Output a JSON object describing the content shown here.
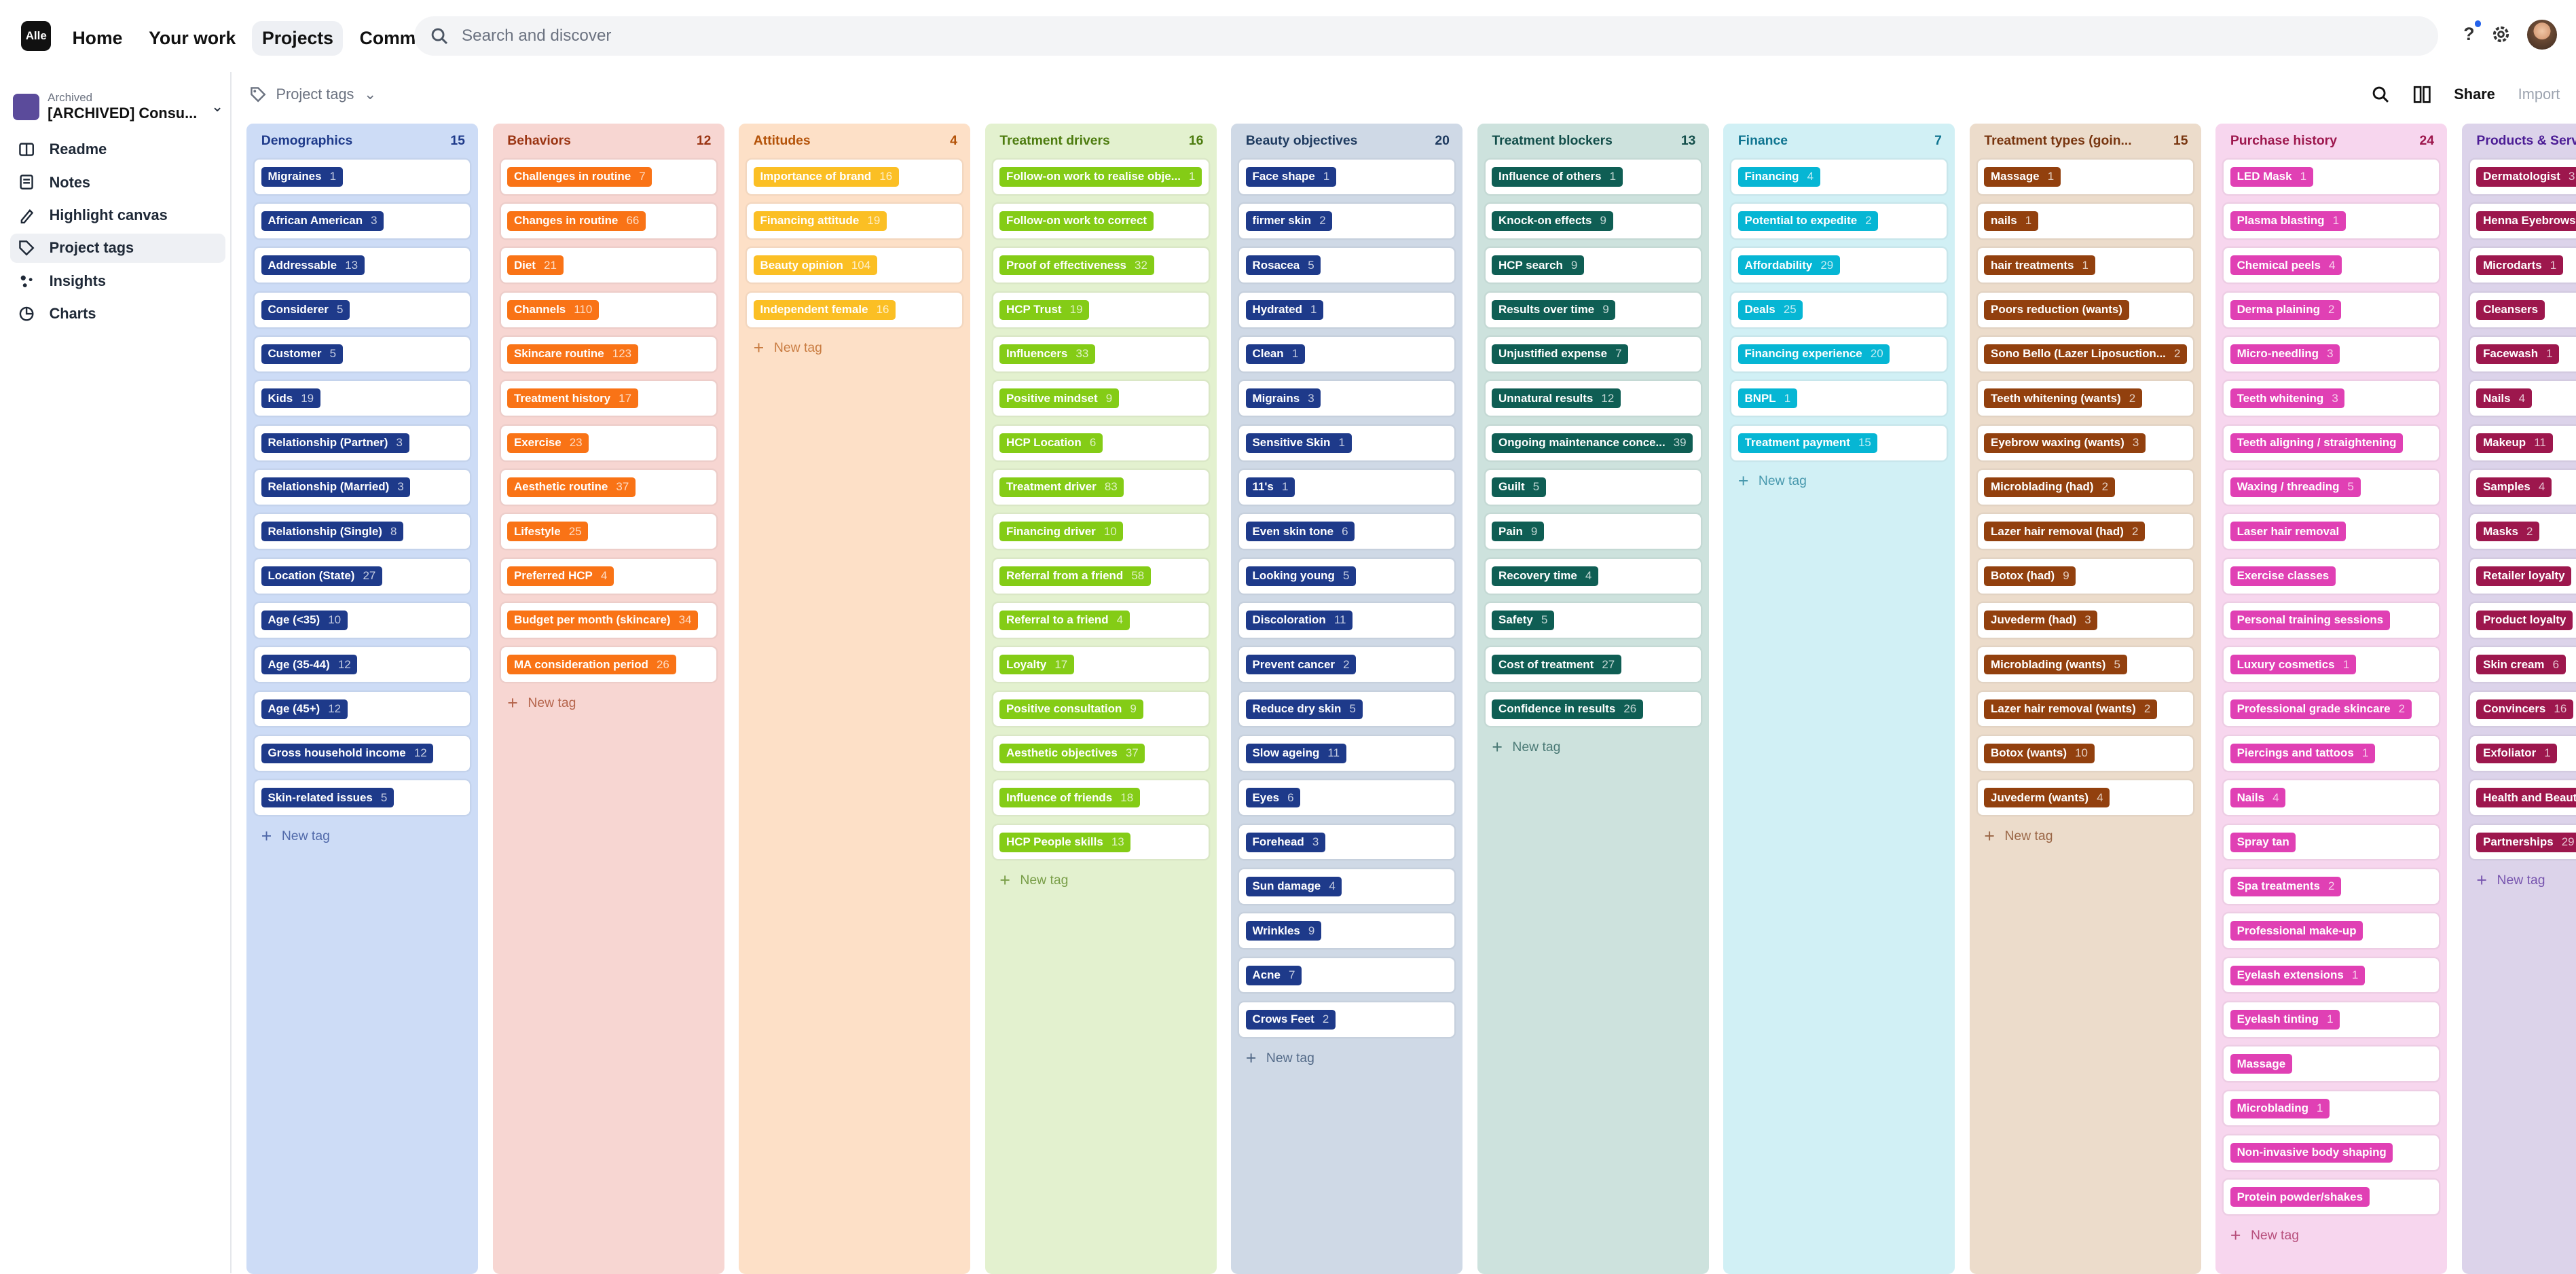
{
  "topbar": {
    "logo": "Alle",
    "nav": [
      "Home",
      "Your work",
      "Projects",
      "Community"
    ],
    "active_nav": "Projects",
    "search_placeholder": "Search and discover"
  },
  "sidebar": {
    "archived_label": "Archived",
    "project_name": "[ARCHIVED] Consu...",
    "items": [
      {
        "label": "Readme",
        "icon": "book-icon"
      },
      {
        "label": "Notes",
        "icon": "notes-icon"
      },
      {
        "label": "Highlight canvas",
        "icon": "highlight-icon"
      },
      {
        "label": "Project tags",
        "icon": "tag-icon",
        "active": true
      },
      {
        "label": "Insights",
        "icon": "insights-icon"
      },
      {
        "label": "Charts",
        "icon": "chart-icon"
      }
    ]
  },
  "toolbar": {
    "project_tags": "Project tags",
    "share": "Share",
    "import": "Import"
  },
  "new_tag_label": "New tag",
  "columns": [
    {
      "name": "Demographics",
      "count": "15",
      "bg": "#cddcf6",
      "head": "#1e3a8a",
      "pill": "#1e3a8a",
      "tags": [
        [
          "Migraines",
          "1"
        ],
        [
          "African American",
          "3"
        ],
        [
          "Addressable",
          "13"
        ],
        [
          "Considerer",
          "5"
        ],
        [
          "Customer",
          "5"
        ],
        [
          "Kids",
          "19"
        ],
        [
          "Relationship (Partner)",
          "3"
        ],
        [
          "Relationship (Married)",
          "3"
        ],
        [
          "Relationship (Single)",
          "8"
        ],
        [
          "Location (State)",
          "27"
        ],
        [
          "Age (<35)",
          "10"
        ],
        [
          "Age (35-44)",
          "12"
        ],
        [
          "Age (45+)",
          "12"
        ],
        [
          "Gross household income",
          "12"
        ],
        [
          "Skin-related issues",
          "5"
        ]
      ]
    },
    {
      "name": "Behaviors",
      "count": "12",
      "bg": "#f7d6d2",
      "head": "#9a3412",
      "pill": "#f97316",
      "tags": [
        [
          "Challenges in routine",
          "7"
        ],
        [
          "Changes in routine",
          "66"
        ],
        [
          "Diet",
          "21"
        ],
        [
          "Channels",
          "110"
        ],
        [
          "Skincare routine",
          "123"
        ],
        [
          "Treatment history",
          "17"
        ],
        [
          "Exercise",
          "23"
        ],
        [
          "Aesthetic routine",
          "37"
        ],
        [
          "Lifestyle",
          "25"
        ],
        [
          "Preferred HCP",
          "4"
        ],
        [
          "Budget per month (skincare)",
          "34"
        ],
        [
          "MA consideration period",
          "26"
        ]
      ]
    },
    {
      "name": "Attitudes",
      "count": "4",
      "bg": "#fde0c7",
      "head": "#b45309",
      "pill": "#fbbf24",
      "tags": [
        [
          "Importance of brand",
          "16"
        ],
        [
          "Financing attitude",
          "19"
        ],
        [
          "Beauty opinion",
          "104"
        ],
        [
          "Independent female",
          "16"
        ]
      ]
    },
    {
      "name": "Treatment drivers",
      "count": "16",
      "bg": "#e3f1cf",
      "head": "#4d7c0f",
      "pill": "#84cc16",
      "tags": [
        [
          "Follow-on work to realise obje...",
          "1"
        ],
        [
          "Follow-on work to correct",
          ""
        ],
        [
          "Proof of effectiveness",
          "32"
        ],
        [
          "HCP Trust",
          "19"
        ],
        [
          "Influencers",
          "33"
        ],
        [
          "Positive mindset",
          "9"
        ],
        [
          "HCP Location",
          "6"
        ],
        [
          "Treatment driver",
          "83"
        ],
        [
          "Financing driver",
          "10"
        ],
        [
          "Referral from a friend",
          "58"
        ],
        [
          "Referral to a friend",
          "4"
        ],
        [
          "Loyalty",
          "17"
        ],
        [
          "Positive consultation",
          "9"
        ],
        [
          "Aesthetic objectives",
          "37"
        ],
        [
          "Influence of friends",
          "18"
        ],
        [
          "HCP People skills",
          "13"
        ]
      ]
    },
    {
      "name": "Beauty objectives",
      "count": "20",
      "bg": "#cfd9e6",
      "head": "#1e3a5f",
      "pill": "#1e3a8a",
      "tags": [
        [
          "Face shape",
          "1"
        ],
        [
          "firmer skin",
          "2"
        ],
        [
          "Rosacea",
          "5"
        ],
        [
          "Hydrated",
          "1"
        ],
        [
          "Clean",
          "1"
        ],
        [
          "Migrains",
          "3"
        ],
        [
          "Sensitive Skin",
          "1"
        ],
        [
          "11's",
          "1"
        ],
        [
          "Even skin tone",
          "6"
        ],
        [
          "Looking young",
          "5"
        ],
        [
          "Discoloration",
          "11"
        ],
        [
          "Prevent cancer",
          "2"
        ],
        [
          "Reduce dry skin",
          "5"
        ],
        [
          "Slow ageing",
          "11"
        ],
        [
          "Eyes",
          "6"
        ],
        [
          "Forehead",
          "3"
        ],
        [
          "Sun damage",
          "4"
        ],
        [
          "Wrinkles",
          "9"
        ],
        [
          "Acne",
          "7"
        ],
        [
          "Crows Feet",
          "2"
        ]
      ]
    },
    {
      "name": "Treatment blockers",
      "count": "13",
      "bg": "#cde2dd",
      "head": "#134e4a",
      "pill": "#0f5e54",
      "tags": [
        [
          "Influence of others",
          "1"
        ],
        [
          "Knock-on effects",
          "9"
        ],
        [
          "HCP search",
          "9"
        ],
        [
          "Results over time",
          "9"
        ],
        [
          "Unjustified expense",
          "7"
        ],
        [
          "Unnatural results",
          "12"
        ],
        [
          "Ongoing maintenance conce...",
          "39"
        ],
        [
          "Guilt",
          "5"
        ],
        [
          "Pain",
          "9"
        ],
        [
          "Recovery time",
          "4"
        ],
        [
          "Safety",
          "5"
        ],
        [
          "Cost of treatment",
          "27"
        ],
        [
          "Confidence in results",
          "26"
        ]
      ]
    },
    {
      "name": "Finance",
      "count": "7",
      "bg": "#d1f0f5",
      "head": "#0e7490",
      "pill": "#06b6d4",
      "tags": [
        [
          "Financing",
          "4"
        ],
        [
          "Potential to expedite",
          "2"
        ],
        [
          "Affordability",
          "29"
        ],
        [
          "Deals",
          "25"
        ],
        [
          "Financing experience",
          "20"
        ],
        [
          "BNPL",
          "1"
        ],
        [
          "Treatment payment",
          "15"
        ]
      ]
    },
    {
      "name": "Treatment types (goin...",
      "count": "15",
      "bg": "#ecdccb",
      "head": "#78350f",
      "pill": "#92400e",
      "tags": [
        [
          "Massage",
          "1"
        ],
        [
          "nails",
          "1"
        ],
        [
          "hair treatments",
          "1"
        ],
        [
          "Poors reduction (wants)",
          ""
        ],
        [
          "Sono Bello (Lazer Liposuction...",
          "2"
        ],
        [
          "Teeth whitening (wants)",
          "2"
        ],
        [
          "Eyebrow waxing (wants)",
          "3"
        ],
        [
          "Microblading (had)",
          "2"
        ],
        [
          "Lazer hair removal (had)",
          "2"
        ],
        [
          "Botox (had)",
          "9"
        ],
        [
          "Juvederm (had)",
          "3"
        ],
        [
          "Microblading (wants)",
          "5"
        ],
        [
          "Lazer hair removal (wants)",
          "2"
        ],
        [
          "Botox (wants)",
          "10"
        ],
        [
          "Juvederm (wants)",
          "4"
        ]
      ]
    },
    {
      "name": "Purchase history",
      "count": "24",
      "bg": "#f7d6ee",
      "head": "#9d174d",
      "pill": "#e040b4",
      "tags": [
        [
          "LED Mask",
          "1"
        ],
        [
          "Plasma blasting",
          "1"
        ],
        [
          "Chemical peels",
          "4"
        ],
        [
          "Derma plaining",
          "2"
        ],
        [
          "Micro-needling",
          "3"
        ],
        [
          "Teeth whitening",
          "3"
        ],
        [
          "Teeth aligning / straightening",
          ""
        ],
        [
          "Waxing / threading",
          "5"
        ],
        [
          "Laser hair removal",
          ""
        ],
        [
          "Exercise classes",
          ""
        ],
        [
          "Personal training sessions",
          ""
        ],
        [
          "Luxury cosmetics",
          "1"
        ],
        [
          "Professional grade skincare",
          "2"
        ],
        [
          "Piercings and tattoos",
          "1"
        ],
        [
          "Nails",
          "4"
        ],
        [
          "Spray tan",
          ""
        ],
        [
          "Spa treatments",
          "2"
        ],
        [
          "Professional make-up",
          ""
        ],
        [
          "Eyelash extensions",
          "1"
        ],
        [
          "Eyelash tinting",
          "1"
        ],
        [
          "Massage",
          ""
        ],
        [
          "Microblading",
          "1"
        ],
        [
          "Non-invasive body shaping",
          ""
        ],
        [
          "Protein powder/shakes",
          ""
        ]
      ]
    },
    {
      "name": "Products & Serv",
      "count": "",
      "bg": "#dcd3ea",
      "head": "#4c1d95",
      "pill": "#9d174d",
      "tags": [
        [
          "Dermatologist",
          "3"
        ],
        [
          "Henna Eyebrows",
          ""
        ],
        [
          "Microdarts",
          "1"
        ],
        [
          "Cleansers",
          ""
        ],
        [
          "Facewash",
          "1"
        ],
        [
          "Nails",
          "4"
        ],
        [
          "Makeup",
          "11"
        ],
        [
          "Samples",
          "4"
        ],
        [
          "Masks",
          "2"
        ],
        [
          "Retailer loyalty",
          ""
        ],
        [
          "Product loyalty",
          ""
        ],
        [
          "Skin cream",
          "6"
        ],
        [
          "Convincers",
          "16"
        ],
        [
          "Exfoliator",
          "1"
        ],
        [
          "Health and Beaut",
          ""
        ],
        [
          "Partnerships",
          "29"
        ]
      ]
    }
  ]
}
